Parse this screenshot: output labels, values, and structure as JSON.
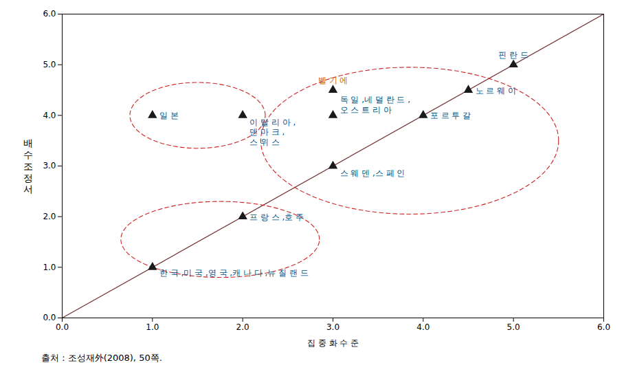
{
  "chart_data": {
    "type": "scatter",
    "title": "",
    "xlabel": "집 중 화 수 준",
    "ylabel": "배\n수\n조\n정\n서",
    "source": "출처 : 조성재外(2008), 50쪽.",
    "xlim": [
      0,
      6
    ],
    "ylim": [
      0,
      6
    ],
    "xticks": [
      0,
      1,
      2,
      3,
      4,
      5,
      6
    ],
    "yticks": [
      0,
      1,
      2,
      3,
      4,
      5,
      6
    ],
    "grid": false,
    "x": [
      1.0,
      2.0,
      2.0,
      1.0,
      3.0,
      3.0,
      3.0,
      4.0,
      4.5,
      5.0
    ],
    "values": [
      1.0,
      2.0,
      4.0,
      4.0,
      4.5,
      4.0,
      3.0,
      4.0,
      4.5,
      5.0
    ],
    "color": "#1a1a1a",
    "marker": "triangle",
    "reference_line": {
      "x": [
        0,
        6
      ],
      "y": [
        0,
        6
      ],
      "color": "#7B3B3B",
      "line_style": "solid"
    },
    "ellipses": {
      "color": "#cc2222",
      "line_style": "dashed",
      "shapes": [
        {
          "cx": 1.5,
          "cy": 4.0,
          "width": 1.5,
          "height": 1.3,
          "angle": 0
        },
        {
          "cx": 1.75,
          "cy": 1.55,
          "width": 2.2,
          "height": 1.5,
          "angle": 0
        },
        {
          "cx": 3.85,
          "cy": 3.5,
          "width": 3.3,
          "height": 2.9,
          "angle": 0
        }
      ]
    },
    "annotations": [
      {
        "x": 1.0,
        "y": 1.0,
        "text": "한 국 ,미 국 ,영 국 ,캐 나 다 ,뉴 질 랜 드",
        "color": "#005588"
      },
      {
        "x": 2.0,
        "y": 2.0,
        "text": "프 랑 스 ,호 주",
        "color": "#005588"
      },
      {
        "x": 2.0,
        "y": 4.0,
        "text": "이 탈 리 아 ,\n덴 마 크 ,\n스 위 스",
        "color": "#005588"
      },
      {
        "x": 1.0,
        "y": 4.0,
        "text": "일 본",
        "color": "#005588"
      },
      {
        "x": 3.0,
        "y": 4.5,
        "text": "벨 기 에",
        "color": "#cc6600"
      },
      {
        "x": 3.0,
        "y": 4.0,
        "text": "독 일 ,네 덜 란 드 ,\n오 스 트 리 아",
        "color": "#005588"
      },
      {
        "x": 3.0,
        "y": 3.0,
        "text": "스 웨 덴 ,스 페 인",
        "color": "#005588"
      },
      {
        "x": 4.0,
        "y": 4.0,
        "text": "포 르 투 갈",
        "color": "#005588"
      },
      {
        "x": 4.5,
        "y": 4.5,
        "text": "노 르 웨 이",
        "color": "#005588"
      },
      {
        "x": 5.0,
        "y": 5.0,
        "text": "핀 란 드",
        "color": "#005588"
      }
    ]
  }
}
